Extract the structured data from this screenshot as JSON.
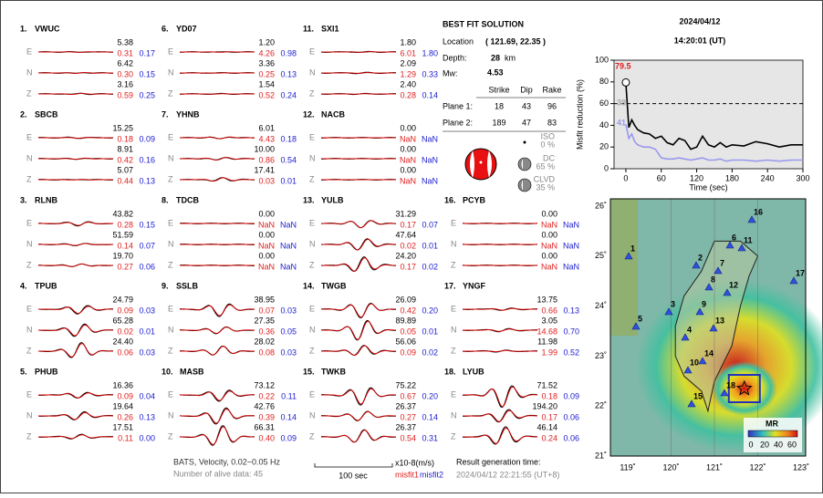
{
  "stations": [
    {
      "label": "1.",
      "name": "VWUC",
      "components": [
        {
          "comp": "E",
          "amplitude": "5.38",
          "misfit1": "0.31",
          "misfit2": "0.17"
        },
        {
          "comp": "N",
          "amplitude": "6.42",
          "misfit1": "0.30",
          "misfit2": "0.15"
        },
        {
          "comp": "Z",
          "amplitude": "3.16",
          "misfit1": "0.59",
          "misfit2": "0.25"
        }
      ]
    },
    {
      "label": "2.",
      "name": "SBCB",
      "components": [
        {
          "comp": "E",
          "amplitude": "15.25",
          "misfit1": "0.18",
          "misfit2": "0.09"
        },
        {
          "comp": "N",
          "amplitude": "8.91",
          "misfit1": "0.42",
          "misfit2": "0.16"
        },
        {
          "comp": "Z",
          "amplitude": "5.07",
          "misfit1": "0.44",
          "misfit2": "0.13"
        }
      ]
    },
    {
      "label": "3.",
      "name": "RLNB",
      "components": [
        {
          "comp": "E",
          "amplitude": "43.82",
          "misfit1": "0.28",
          "misfit2": "0.15"
        },
        {
          "comp": "N",
          "amplitude": "51.59",
          "misfit1": "0.14",
          "misfit2": "0.07"
        },
        {
          "comp": "Z",
          "amplitude": "19.70",
          "misfit1": "0.27",
          "misfit2": "0.06"
        }
      ]
    },
    {
      "label": "4.",
      "name": "TPUB",
      "components": [
        {
          "comp": "E",
          "amplitude": "24.79",
          "misfit1": "0.09",
          "misfit2": "0.03"
        },
        {
          "comp": "N",
          "amplitude": "65.28",
          "misfit1": "0.02",
          "misfit2": "0.01"
        },
        {
          "comp": "Z",
          "amplitude": "24.40",
          "misfit1": "0.06",
          "misfit2": "0.03"
        }
      ]
    },
    {
      "label": "5.",
      "name": "PHUB",
      "components": [
        {
          "comp": "E",
          "amplitude": "16.36",
          "misfit1": "0.09",
          "misfit2": "0.04"
        },
        {
          "comp": "N",
          "amplitude": "19.64",
          "misfit1": "0.26",
          "misfit2": "0.13"
        },
        {
          "comp": "Z",
          "amplitude": "17.51",
          "misfit1": "0.11",
          "misfit2": "0.00"
        }
      ]
    },
    {
      "label": "6.",
      "name": "YD07",
      "components": [
        {
          "comp": "E",
          "amplitude": "1.20",
          "misfit1": "4.26",
          "misfit2": "0.98"
        },
        {
          "comp": "N",
          "amplitude": "3.36",
          "misfit1": "0.25",
          "misfit2": "0.13"
        },
        {
          "comp": "Z",
          "amplitude": "1.54",
          "misfit1": "0.52",
          "misfit2": "0.24"
        }
      ]
    },
    {
      "label": "7.",
      "name": "YHNB",
      "components": [
        {
          "comp": "E",
          "amplitude": "6.01",
          "misfit1": "4.43",
          "misfit2": "0.18"
        },
        {
          "comp": "N",
          "amplitude": "10.00",
          "misfit1": "0.86",
          "misfit2": "0.54"
        },
        {
          "comp": "Z",
          "amplitude": "17.41",
          "misfit1": "0.03",
          "misfit2": "0.01"
        }
      ]
    },
    {
      "label": "8.",
      "name": "TDCB",
      "components": [
        {
          "comp": "E",
          "amplitude": "0.00",
          "misfit1": "NaN",
          "misfit2": "NaN"
        },
        {
          "comp": "N",
          "amplitude": "0.00",
          "misfit1": "NaN",
          "misfit2": "NaN"
        },
        {
          "comp": "Z",
          "amplitude": "0.00",
          "misfit1": "NaN",
          "misfit2": "NaN"
        }
      ]
    },
    {
      "label": "9.",
      "name": "SSLB",
      "components": [
        {
          "comp": "E",
          "amplitude": "38.95",
          "misfit1": "0.07",
          "misfit2": "0.03"
        },
        {
          "comp": "N",
          "amplitude": "27.35",
          "misfit1": "0.36",
          "misfit2": "0.05"
        },
        {
          "comp": "Z",
          "amplitude": "28.02",
          "misfit1": "0.08",
          "misfit2": "0.03"
        }
      ]
    },
    {
      "label": "10.",
      "name": "MASB",
      "components": [
        {
          "comp": "E",
          "amplitude": "73.12",
          "misfit1": "0.22",
          "misfit2": "0.11"
        },
        {
          "comp": "N",
          "amplitude": "42.76",
          "misfit1": "0.39",
          "misfit2": "0.14"
        },
        {
          "comp": "Z",
          "amplitude": "66.31",
          "misfit1": "0.40",
          "misfit2": "0.09"
        }
      ]
    },
    {
      "label": "11.",
      "name": "SXI1",
      "components": [
        {
          "comp": "E",
          "amplitude": "1.80",
          "misfit1": "6.01",
          "misfit2": "1.80"
        },
        {
          "comp": "N",
          "amplitude": "2.09",
          "misfit1": "1.29",
          "misfit2": "0.33"
        },
        {
          "comp": "Z",
          "amplitude": "2.40",
          "misfit1": "0.28",
          "misfit2": "0.14"
        }
      ]
    },
    {
      "label": "12.",
      "name": "NACB",
      "components": [
        {
          "comp": "E",
          "amplitude": "0.00",
          "misfit1": "NaN",
          "misfit2": "NaN"
        },
        {
          "comp": "N",
          "amplitude": "0.00",
          "misfit1": "NaN",
          "misfit2": "NaN"
        },
        {
          "comp": "Z",
          "amplitude": "0.00",
          "misfit1": "NaN",
          "misfit2": "NaN"
        }
      ]
    },
    {
      "label": "13.",
      "name": "YULB",
      "components": [
        {
          "comp": "E",
          "amplitude": "31.29",
          "misfit1": "0.17",
          "misfit2": "0.07"
        },
        {
          "comp": "N",
          "amplitude": "47.64",
          "misfit1": "0.02",
          "misfit2": "0.01"
        },
        {
          "comp": "Z",
          "amplitude": "24.20",
          "misfit1": "0.17",
          "misfit2": "0.02"
        }
      ]
    },
    {
      "label": "14.",
      "name": "TWGB",
      "components": [
        {
          "comp": "E",
          "amplitude": "26.09",
          "misfit1": "0.42",
          "misfit2": "0.20"
        },
        {
          "comp": "N",
          "amplitude": "89.89",
          "misfit1": "0.05",
          "misfit2": "0.01"
        },
        {
          "comp": "Z",
          "amplitude": "56.06",
          "misfit1": "0.09",
          "misfit2": "0.02"
        }
      ]
    },
    {
      "label": "15.",
      "name": "TWKB",
      "components": [
        {
          "comp": "E",
          "amplitude": "75.22",
          "misfit1": "0.67",
          "misfit2": "0.20"
        },
        {
          "comp": "N",
          "amplitude": "26.37",
          "misfit1": "0.27",
          "misfit2": "0.14"
        },
        {
          "comp": "Z",
          "amplitude": "26.37",
          "misfit1": "0.54",
          "misfit2": "0.31"
        }
      ]
    },
    {
      "label": "16.",
      "name": "PCYB",
      "components": [
        {
          "comp": "E",
          "amplitude": "0.00",
          "misfit1": "NaN",
          "misfit2": "NaN"
        },
        {
          "comp": "N",
          "amplitude": "0.00",
          "misfit1": "NaN",
          "misfit2": "NaN"
        },
        {
          "comp": "Z",
          "amplitude": "0.00",
          "misfit1": "NaN",
          "misfit2": "NaN"
        }
      ]
    },
    {
      "label": "17.",
      "name": "YNGF",
      "components": [
        {
          "comp": "E",
          "amplitude": "13.75",
          "misfit1": "0.66",
          "misfit2": "0.13"
        },
        {
          "comp": "N",
          "amplitude": "3.05",
          "misfit1": "14.68",
          "misfit2": "0.70"
        },
        {
          "comp": "Z",
          "amplitude": "11.98",
          "misfit1": "1.99",
          "misfit2": "0.52"
        }
      ]
    },
    {
      "label": "18.",
      "name": "LYUB",
      "components": [
        {
          "comp": "E",
          "amplitude": "71.52",
          "misfit1": "0.18",
          "misfit2": "0.09"
        },
        {
          "comp": "N",
          "amplitude": "194.20",
          "misfit1": "0.17",
          "misfit2": "0.06"
        },
        {
          "comp": "Z",
          "amplitude": "46.14",
          "misfit1": "0.24",
          "misfit2": "0.06"
        }
      ]
    }
  ],
  "solution": {
    "title": "BEST FIT SOLUTION",
    "location_label": "Location",
    "location": "( 121.69, 22.35 )",
    "depth_label": "Depth:",
    "depth": "28",
    "depth_unit": "km",
    "mw_label": "Mw:",
    "mw": "4.53",
    "headers": [
      "Strike",
      "Dip",
      "Rake"
    ],
    "planes": [
      {
        "label": "Plane 1:",
        "values": [
          "18",
          "43",
          "96"
        ]
      },
      {
        "label": "Plane 2:",
        "values": [
          "189",
          "47",
          "83"
        ]
      }
    ],
    "components": [
      {
        "name": "ISO",
        "value": "0 %"
      },
      {
        "name": "DC",
        "value": "65 %"
      },
      {
        "name": "CLVD",
        "value": "35 %"
      }
    ]
  },
  "event": {
    "date": "2024/04/12",
    "time": "14:20:01  (UT)"
  },
  "chart_data": {
    "type": "line",
    "ylabel": "Misfit reduction (%)",
    "xlabel": "Time (sec)",
    "x": [
      0,
      5,
      10,
      15,
      20,
      30,
      40,
      50,
      60,
      70,
      80,
      90,
      100,
      110,
      120,
      130,
      140,
      150,
      160,
      170,
      180,
      200,
      220,
      240,
      260,
      280,
      300
    ],
    "series": [
      {
        "color": "#000000",
        "values": [
          79.5,
          38,
          45,
          40,
          36,
          33,
          32,
          28,
          30,
          24,
          22,
          28,
          26,
          18,
          20,
          30,
          22,
          20,
          24,
          20,
          22,
          21,
          25,
          23,
          20,
          22,
          22
        ]
      },
      {
        "color": "#9999ee",
        "values": [
          41,
          28,
          32,
          25,
          22,
          20,
          20,
          18,
          10,
          9,
          9,
          10,
          9,
          8,
          9,
          10,
          8,
          8,
          9,
          7,
          8,
          8,
          7,
          8,
          7,
          8,
          8
        ]
      }
    ],
    "xlim": [
      -20,
      300
    ],
    "ylim": [
      0,
      100
    ],
    "xticks": [
      0,
      60,
      120,
      180,
      240,
      300
    ],
    "yticks": [
      0,
      20,
      40,
      60,
      80,
      100
    ],
    "threshold": 60,
    "annotations": [
      {
        "text": "79.5",
        "color": "#e02020"
      },
      {
        "text": "38",
        "color": "#aaaaaa"
      },
      {
        "text": "41",
        "color": "#9999ee"
      }
    ]
  },
  "map": {
    "lon_labels": [
      "119˚",
      "120˚",
      "121˚",
      "122˚",
      "123˚"
    ],
    "lat_labels": [
      "26˚",
      "25˚",
      "24˚",
      "23˚",
      "22˚",
      "21˚"
    ],
    "station_numbers": [
      "1",
      "2",
      "3",
      "4",
      "5",
      "6",
      "7",
      "8",
      "9",
      "10",
      "11",
      "12",
      "13",
      "14",
      "15",
      "16",
      "17",
      "18"
    ],
    "colorbar_title": "MR",
    "colorbar_labels": [
      "0",
      "20",
      "40",
      "60"
    ]
  },
  "footer": {
    "filter": "BATS, Velocity, 0.02~0.05 Hz",
    "alive": "Number of alive data: 45",
    "scale": "100 sec",
    "unit": "x10-8(m/s)",
    "misfit1": "misfit1",
    "misfit2": "misfit2",
    "generation_label": "Result generation time:",
    "generation_time": "2024/04/12 22:21:55 (UT+8)"
  }
}
